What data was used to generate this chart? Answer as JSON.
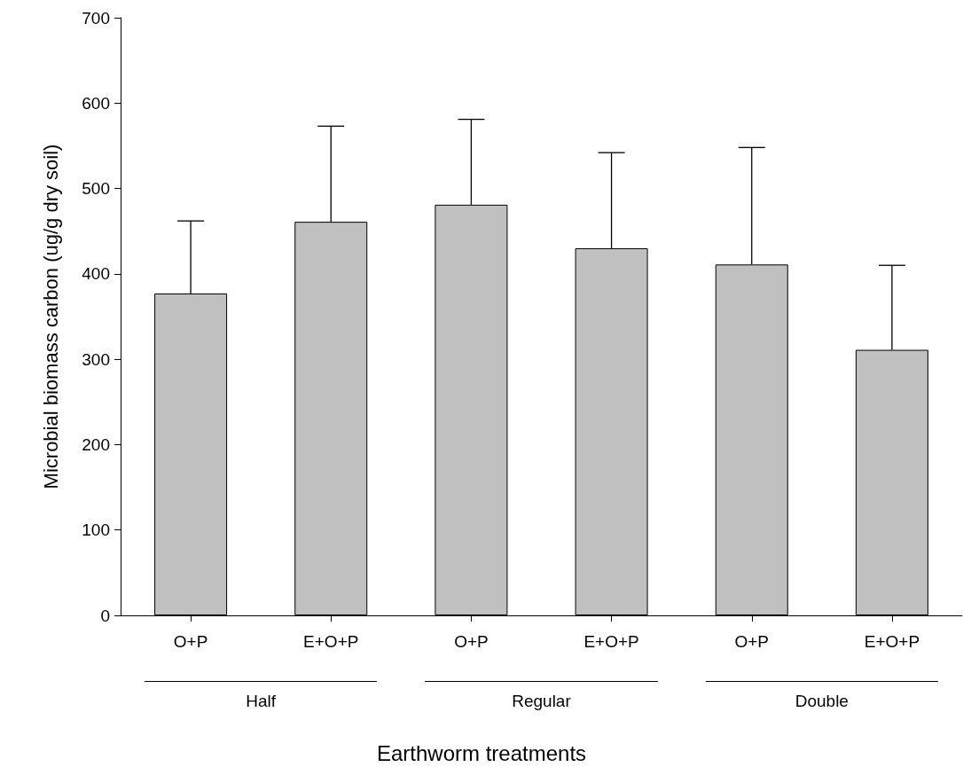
{
  "chart_data": {
    "type": "bar",
    "xlabel": "Earthworm treatments",
    "ylabel": "Microbial biomass carbon (ug/g dry soil)",
    "categories": [
      "O+P",
      "E+O+P",
      "O+P",
      "E+O+P",
      "O+P",
      "E+O+P"
    ],
    "values": [
      377,
      461,
      481,
      430,
      411,
      311
    ],
    "errors": [
      [
        377,
        462
      ],
      [
        461,
        573
      ],
      [
        481,
        581
      ],
      [
        430,
        542
      ],
      [
        411,
        548
      ],
      [
        311,
        410
      ]
    ],
    "color": "#c0c0c0",
    "ylim": [
      0,
      700
    ],
    "yticks": [
      0,
      100,
      200,
      300,
      400,
      500,
      600,
      700
    ],
    "annotations": [
      "Half",
      "Regular",
      "Double"
    ]
  }
}
